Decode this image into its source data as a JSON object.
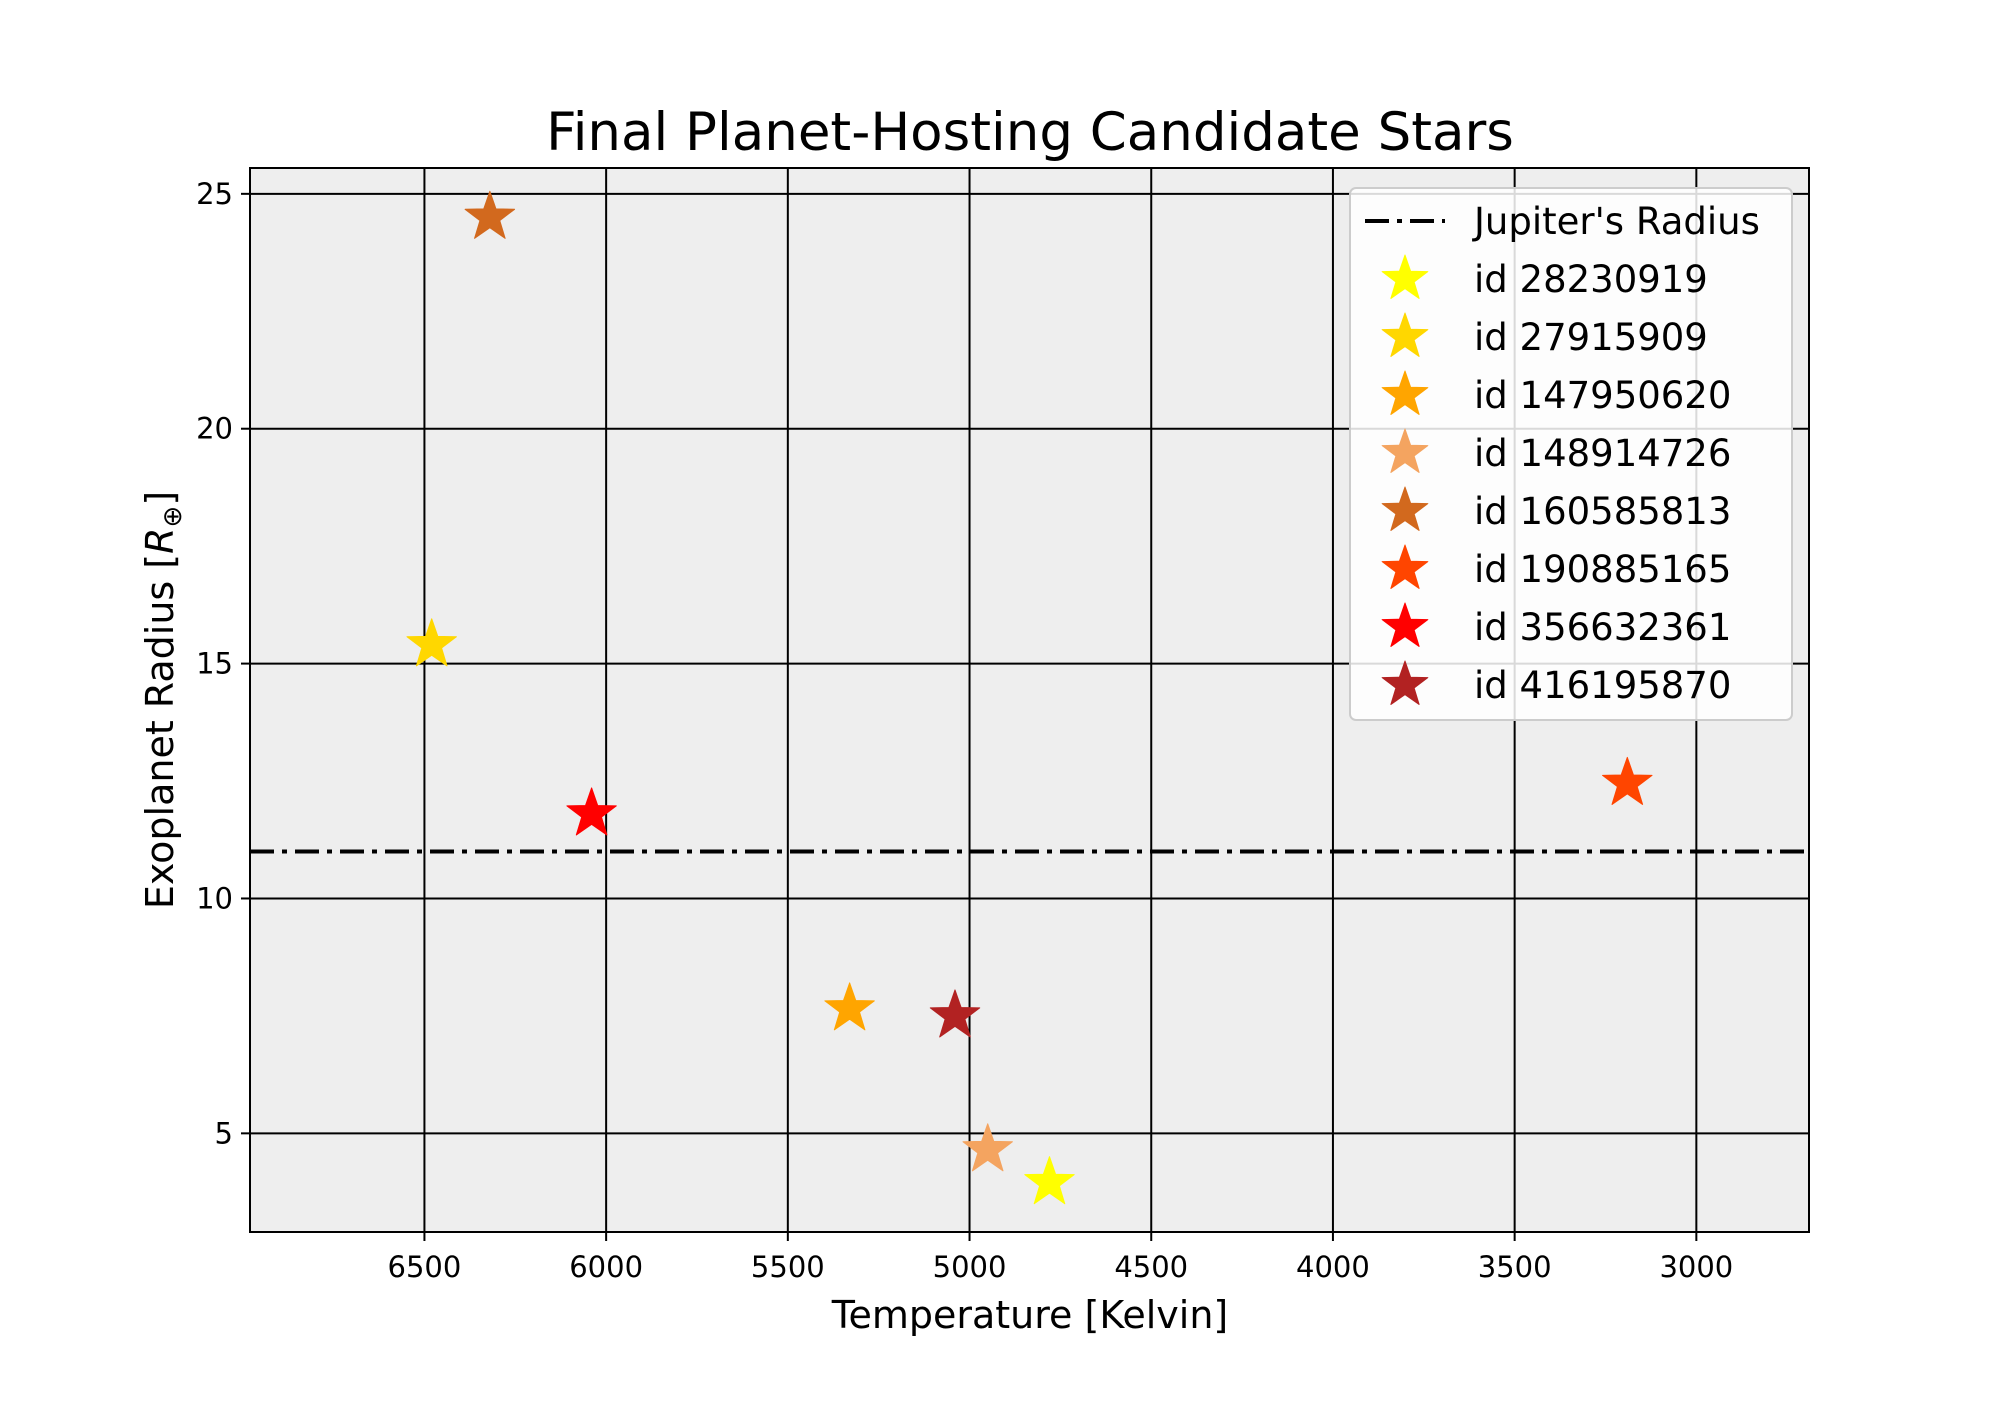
{
  "chart_data": {
    "type": "scatter",
    "title": "Final Planet-Hosting Candidate Stars",
    "xlabel": "Temperature [Kelvin]",
    "ylabel_main": "Exoplanet Radius [",
    "ylabel_sym": "R",
    "ylabel_sub": "⊕",
    "ylabel_end": "]",
    "xlim": [
      6980,
      2690
    ],
    "ylim": [
      2.9,
      25.55
    ],
    "x_inverted": true,
    "grid": true,
    "background_color": "#eeeeee",
    "xticks": [
      6500,
      6000,
      5500,
      5000,
      4500,
      4000,
      3500,
      3000
    ],
    "yticks": [
      5,
      10,
      15,
      20,
      25
    ],
    "reference_line": {
      "label": "Jupiter's Radius",
      "y": 11.0,
      "style": "dash-dot",
      "color": "#000000"
    },
    "legend_position": "top-right",
    "series": [
      {
        "name": "id 28230919",
        "x": 4780,
        "y": 3.95,
        "color": "#ffff00",
        "marker": "star"
      },
      {
        "name": "id 27915909",
        "x": 6480,
        "y": 15.4,
        "color": "#ffd700",
        "marker": "star"
      },
      {
        "name": "id 147950620",
        "x": 5330,
        "y": 7.65,
        "color": "#ffa500",
        "marker": "star"
      },
      {
        "name": "id 148914726",
        "x": 4950,
        "y": 4.65,
        "color": "#f4a460",
        "marker": "star"
      },
      {
        "name": "id 160585813",
        "x": 6320,
        "y": 24.5,
        "color": "#d2691e",
        "marker": "star"
      },
      {
        "name": "id 190885165",
        "x": 3190,
        "y": 12.45,
        "color": "#ff4500",
        "marker": "star"
      },
      {
        "name": "id 356632361",
        "x": 6040,
        "y": 11.8,
        "color": "#ff0000",
        "marker": "star"
      },
      {
        "name": "id 416195870",
        "x": 5040,
        "y": 7.5,
        "color": "#b22222",
        "marker": "star"
      }
    ]
  }
}
